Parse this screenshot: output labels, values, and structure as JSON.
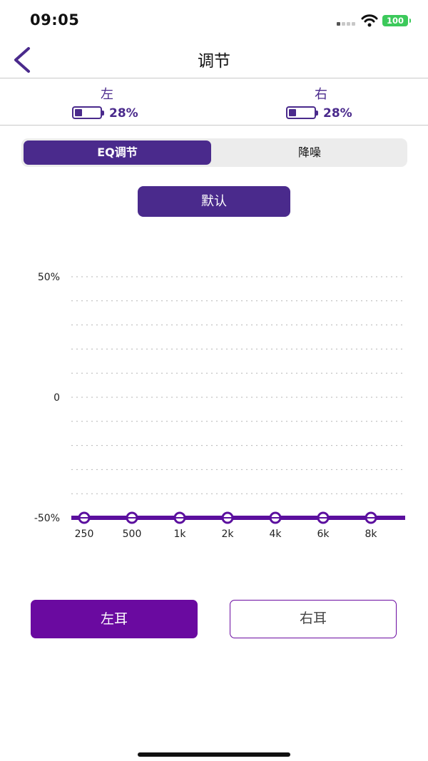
{
  "status_bar": {
    "time": "09:05",
    "battery": "100"
  },
  "nav": {
    "title": "调节",
    "back_icon": "chevron-left-icon"
  },
  "ears_battery": {
    "left": {
      "label": "左",
      "percent_text": "28%",
      "level": 0.28
    },
    "right": {
      "label": "右",
      "percent_text": "28%",
      "level": 0.28
    }
  },
  "segmented": {
    "tabs": [
      "EQ调节",
      "降噪"
    ],
    "selected": 0
  },
  "default_button": "默认",
  "chart_data": {
    "type": "line",
    "categories": [
      "250",
      "500",
      "1k",
      "2k",
      "4k",
      "6k",
      "8k"
    ],
    "values": [
      -50,
      -50,
      -50,
      -50,
      -50,
      -50,
      -50
    ],
    "y_tick_labels": [
      "50%",
      "0",
      "-50%"
    ],
    "ylim": [
      -50,
      50
    ],
    "grid": "dotted",
    "color": "#5b0f9e"
  },
  "ear_buttons": {
    "left": "左耳",
    "right": "右耳",
    "selected": "left"
  },
  "colors": {
    "accent": "#4a2a8c",
    "ear_button": "#6a0aa0",
    "status_battery": "#3cc95b"
  }
}
